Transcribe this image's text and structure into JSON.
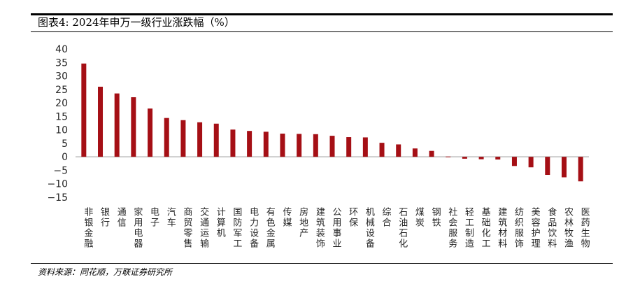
{
  "title": "图表4:  2024年申万一级行业涨跌幅（%）",
  "source": "资料来源：同花顺，万联证券研究所",
  "colors": {
    "bar": "#a50f15",
    "axis": "#999999"
  },
  "chart_data": {
    "type": "bar",
    "title": "",
    "xlabel": "",
    "ylabel": "",
    "ylim": [
      -15,
      40
    ],
    "yticks": [
      -15,
      -10,
      -5,
      0,
      5,
      10,
      15,
      20,
      25,
      30,
      35,
      40
    ],
    "grid": false,
    "legend": "none",
    "categories": [
      "非银金融",
      "银行",
      "通信",
      "家用电器",
      "电子",
      "汽车",
      "商贸零售",
      "交通运输",
      "计算机",
      "国防军工",
      "电力设备",
      "有色金属",
      "传媒",
      "房地产",
      "建筑装饰",
      "公用事业",
      "环保",
      "机械设备",
      "综合",
      "石油石化",
      "煤炭",
      "钢铁",
      "社会服务",
      "轻工制造",
      "基础化工",
      "建筑材料",
      "纺织服饰",
      "美容护理",
      "食品饮料",
      "农林牧渔",
      "医药生物"
    ],
    "values": [
      34.6,
      26.0,
      23.5,
      22.1,
      17.9,
      14.4,
      13.6,
      12.8,
      12.3,
      10.1,
      9.6,
      9.3,
      8.6,
      8.5,
      8.4,
      7.8,
      7.3,
      7.2,
      5.2,
      4.6,
      3.1,
      2.2,
      0.1,
      -0.7,
      -0.9,
      -1.0,
      -3.4,
      -3.9,
      -6.7,
      -7.6,
      -9.1
    ]
  }
}
